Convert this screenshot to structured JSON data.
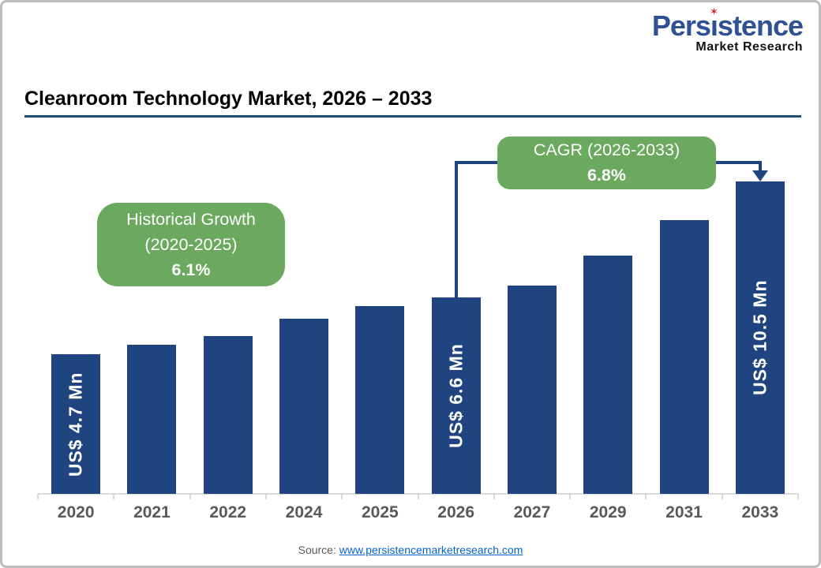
{
  "page": {
    "title": "Cleanroom Technology Market, 2026 – 2033",
    "source_label": "Source: ",
    "source_link": "www.persistencemarketresearch.com"
  },
  "logo": {
    "brand_pre": "Pers",
    "brand_i": "ı",
    "brand_post": "stence",
    "star": "✶",
    "sub": "Market Research"
  },
  "annotations": {
    "historical": {
      "line1": "Historical Growth",
      "line2": "(2020-2025)",
      "value": "6.1%"
    },
    "cagr": {
      "line1": "CAGR (2026-2033)",
      "value": "6.8%"
    }
  },
  "colors": {
    "bar": "#1f4480",
    "callout_green": "#6aa95e",
    "title_rule": "#1f4e79",
    "logo_blue": "#2d5191",
    "logo_red": "#d12128",
    "axis_gray": "#d9d9d9",
    "tick_text_gray": "#595959",
    "link_blue": "#0563c1"
  },
  "chart_data": {
    "type": "bar",
    "title": "Cleanroom Technology Market, 2026 – 2033",
    "categories": [
      "2020",
      "2021",
      "2022",
      "2024",
      "2025",
      "2026",
      "2027",
      "2029",
      "2031",
      "2033"
    ],
    "values": [
      4.7,
      5.0,
      5.3,
      5.9,
      6.3,
      6.6,
      7.0,
      8.0,
      9.2,
      10.5
    ],
    "values_note": "Only 2020, 2026 and 2033 carry data labels; intermediate values estimated from bar heights and stated growth rates",
    "bar_labels": [
      "US$ 4.7 Mn",
      "",
      "",
      "",
      "",
      "US$ 6.6 Mn",
      "",
      "",
      "",
      "US$ 10.5 Mn"
    ],
    "unit": "US$ Mn",
    "xlabel": "",
    "ylabel": "",
    "ylim": [
      0,
      10.5
    ],
    "grid": false,
    "legend": "none",
    "annotations": [
      "Historical Growth (2020-2025) 6.1%",
      "CAGR (2026-2033) 6.8%"
    ]
  }
}
